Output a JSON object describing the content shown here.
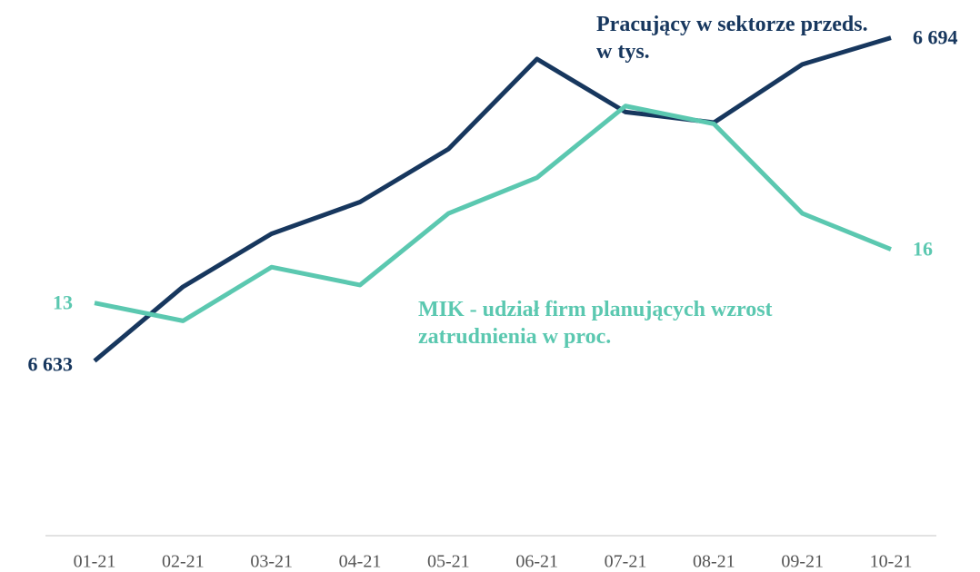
{
  "chart_data": {
    "type": "line",
    "categories": [
      "01-21",
      "02-21",
      "03-21",
      "04-21",
      "05-21",
      "06-21",
      "07-21",
      "08-21",
      "09-21",
      "10-21"
    ],
    "series": [
      {
        "name": "Pracujący w sektorze przeds. w tys.",
        "color": "#17375e",
        "values": [
          6633,
          6647,
          6657,
          6663,
          6673,
          6690,
          6680,
          6678,
          6689,
          6694
        ],
        "value_labels": [
          "6 633",
          null,
          null,
          null,
          null,
          null,
          null,
          null,
          null,
          "6 694"
        ]
      },
      {
        "name": "MIK - udział firm planujących wzrost zatrudnienia w proc.",
        "color": "#5bc8b0",
        "axis": "y2",
        "values": [
          13,
          12,
          15,
          14,
          18,
          20,
          24,
          23,
          18,
          16
        ],
        "value_labels": [
          13,
          null,
          null,
          null,
          null,
          null,
          null,
          null,
          null,
          16
        ]
      }
    ],
    "ylim": [
      6600,
      6696
    ],
    "y2lim": [
      0,
      28.4
    ]
  }
}
